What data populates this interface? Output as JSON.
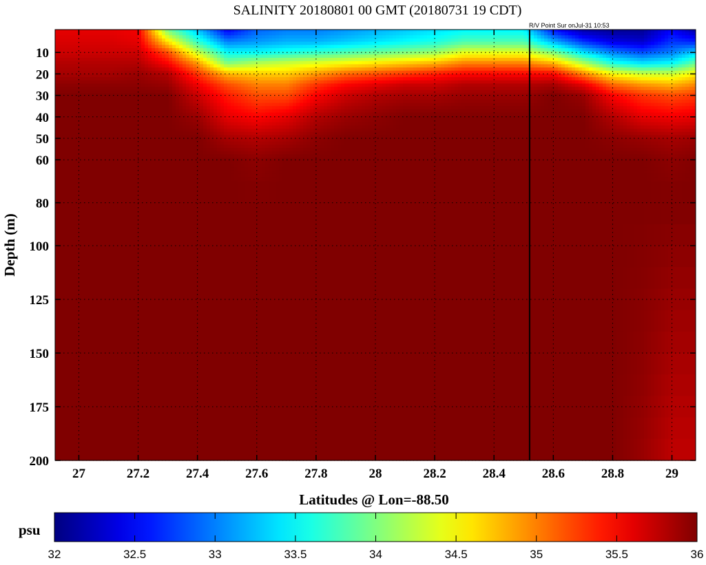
{
  "chart_data": {
    "type": "heatmap",
    "title": "SALINITY 20180801 00 GMT (20180731 19 CDT)",
    "annotation": "R/V Point Sur onJul-31 10:53",
    "xlabel": "Latitudes @ Lon=-88.50",
    "ylabel": "Depth (m)",
    "xlim": [
      26.92,
      29.08
    ],
    "ylim": [
      0,
      200
    ],
    "y_reversed": true,
    "grid": true,
    "x_ticks": [
      "27",
      "27.2",
      "27.4",
      "27.6",
      "27.8",
      "28",
      "28.2",
      "28.4",
      "28.6",
      "28.8",
      "29"
    ],
    "y_ticks": [
      "10",
      "20",
      "30",
      "40",
      "50",
      "60",
      "80",
      "100",
      "125",
      "150",
      "175",
      "200"
    ],
    "marker_line_latitude": 28.52,
    "colormap": "jet",
    "colorbar": {
      "label": "psu",
      "range": [
        32,
        36
      ],
      "ticks": [
        "32",
        "32.5",
        "33",
        "33.5",
        "34",
        "34.5",
        "35",
        "35.5",
        "36"
      ],
      "placement": "bottom"
    },
    "latitudes": [
      26.9,
      27.0,
      27.1,
      27.2,
      27.3,
      27.4,
      27.5,
      27.6,
      27.7,
      27.8,
      27.9,
      28.0,
      28.1,
      28.2,
      28.3,
      28.4,
      28.5,
      28.6,
      28.7,
      28.8,
      28.9,
      29.0,
      29.1
    ],
    "depths": [
      0,
      5,
      10,
      15,
      20,
      25,
      30,
      40,
      50,
      60,
      80,
      150,
      200
    ],
    "salinity_psu_by_latitude": [
      [
        35.6,
        35.65,
        35.7,
        35.8,
        35.85,
        35.95,
        36,
        36,
        36,
        36,
        36,
        36,
        36
      ],
      [
        35.6,
        35.65,
        35.7,
        35.8,
        35.85,
        35.95,
        36,
        36,
        36,
        36,
        36,
        36,
        36
      ],
      [
        35.6,
        35.65,
        35.7,
        35.8,
        35.85,
        35.95,
        36,
        36,
        36,
        36,
        36,
        36,
        36
      ],
      [
        35.55,
        35.6,
        35.7,
        35.8,
        35.9,
        35.95,
        36,
        36,
        36,
        36,
        36,
        36,
        36
      ],
      [
        34.0,
        34.6,
        35.2,
        35.5,
        35.8,
        35.9,
        36,
        36,
        36,
        36,
        36,
        36,
        36
      ],
      [
        33.3,
        33.7,
        34.3,
        34.9,
        35.3,
        35.55,
        35.7,
        35.9,
        36,
        36,
        36,
        36,
        36
      ],
      [
        32.5,
        33.0,
        33.5,
        34.0,
        34.8,
        35.2,
        35.4,
        35.6,
        35.85,
        36,
        36,
        36,
        36
      ],
      [
        32.9,
        33.1,
        33.5,
        34.2,
        34.7,
        35.0,
        35.2,
        35.5,
        35.8,
        35.95,
        36,
        36,
        36
      ],
      [
        33.0,
        33.2,
        33.6,
        34.3,
        34.7,
        35.0,
        35.2,
        35.6,
        35.85,
        36,
        36,
        36,
        36
      ],
      [
        33.0,
        33.2,
        33.7,
        34.4,
        34.9,
        35.3,
        35.5,
        35.8,
        35.95,
        36,
        36,
        36,
        36
      ],
      [
        33.1,
        33.3,
        33.8,
        34.5,
        35.1,
        35.5,
        35.7,
        35.9,
        36,
        36,
        36,
        36,
        36
      ],
      [
        33.2,
        33.4,
        33.9,
        34.6,
        35.2,
        35.6,
        35.8,
        35.95,
        36,
        36,
        36,
        36,
        36
      ],
      [
        33.3,
        33.5,
        34.0,
        34.7,
        35.3,
        35.7,
        35.85,
        36,
        36,
        36,
        36,
        36,
        36
      ],
      [
        33.4,
        33.6,
        34.1,
        34.8,
        35.4,
        35.7,
        35.85,
        36,
        36,
        36,
        36,
        36,
        36
      ],
      [
        33.5,
        33.8,
        34.4,
        35.0,
        35.5,
        35.8,
        35.9,
        36,
        36,
        36,
        36,
        36,
        36
      ],
      [
        33.5,
        33.8,
        34.4,
        35.0,
        35.5,
        35.8,
        35.9,
        36,
        36,
        36,
        36,
        36,
        36
      ],
      [
        33.5,
        33.8,
        34.4,
        35.0,
        35.5,
        35.8,
        35.9,
        36,
        36,
        36,
        36,
        36,
        36
      ],
      [
        32.6,
        33.2,
        34.0,
        34.8,
        35.5,
        35.85,
        36,
        36,
        36,
        36,
        36,
        36,
        36
      ],
      [
        32.2,
        32.7,
        33.4,
        34.2,
        35.0,
        35.6,
        35.9,
        36,
        36,
        36,
        36,
        36,
        36
      ],
      [
        32.1,
        32.4,
        33.0,
        33.6,
        34.5,
        35.1,
        35.5,
        35.8,
        35.95,
        36,
        36,
        36,
        36
      ],
      [
        32.1,
        32.3,
        32.8,
        33.4,
        34.3,
        34.9,
        35.3,
        35.6,
        35.9,
        36,
        36,
        35.95,
        35.9
      ],
      [
        32.5,
        32.7,
        33.0,
        33.5,
        34.3,
        34.8,
        35.2,
        35.55,
        35.85,
        35.95,
        36,
        35.85,
        35.75
      ],
      [
        32.1,
        32.6,
        33.4,
        34.0,
        34.6,
        35.0,
        35.3,
        35.6,
        35.9,
        36,
        36,
        35.85,
        35.75
      ]
    ]
  }
}
